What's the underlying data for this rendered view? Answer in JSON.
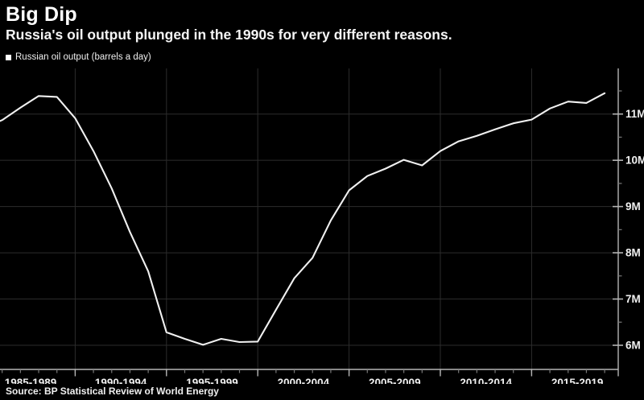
{
  "header": {
    "title": "Big Dip",
    "subtitle": "Russia's oil output plunged in the 1990s for very different reasons."
  },
  "legend": {
    "marker": "square-icon",
    "label": "Russian oil output (barrels a day)"
  },
  "source": {
    "text": "Source: BP Statistical Review of World Energy"
  },
  "colors": {
    "background": "#000000",
    "line": "#f0f0f0",
    "grid": "#2c2c2c",
    "axis": "#b5b5b5",
    "tick_label": "#f0f0f0",
    "minor_tick": "#7a7a7a"
  },
  "chart_data": {
    "type": "line",
    "title": "Big Dip",
    "xlabel": "",
    "ylabel": "",
    "unit": "million barrels per day",
    "grid": "on",
    "legend_position": "top-left",
    "ylim": [
      5.5,
      12
    ],
    "xlim": [
      1985,
      2020
    ],
    "y_ticks": [
      6,
      7,
      8,
      9,
      10,
      11
    ],
    "y_tick_labels": [
      "6M",
      "7M",
      "8M",
      "9M",
      "10M",
      "11M"
    ],
    "y_minor_ticks": [
      6.5,
      7.5,
      8.5,
      9.5,
      10.5,
      11.5
    ],
    "x_group_labels": [
      "1985-1989",
      "1990-1994",
      "1995-1999",
      "2000-2004",
      "2005-2009",
      "2010-2014",
      "2015-2019"
    ],
    "x_group_size": 5,
    "series": [
      {
        "name": "Russian oil output (barrels a day)",
        "x": [
          1985,
          1986,
          1987,
          1988,
          1989,
          1990,
          1991,
          1992,
          1993,
          1994,
          1995,
          1996,
          1997,
          1998,
          1999,
          2000,
          2001,
          2002,
          2003,
          2004,
          2005,
          2006,
          2007,
          2008,
          2009,
          2010,
          2011,
          2012,
          2013,
          2014,
          2015,
          2016,
          2017,
          2018,
          2019
        ],
        "values": [
          10.7,
          10.87,
          11.14,
          11.39,
          11.37,
          10.91,
          10.2,
          9.39,
          8.45,
          7.6,
          6.28,
          6.14,
          6.01,
          6.14,
          6.07,
          6.08,
          6.77,
          7.45,
          7.89,
          8.7,
          9.35,
          9.66,
          9.82,
          10.01,
          9.89,
          10.2,
          10.41,
          10.53,
          10.67,
          10.8,
          10.88,
          11.12,
          11.27,
          11.24,
          11.45
        ]
      }
    ]
  }
}
